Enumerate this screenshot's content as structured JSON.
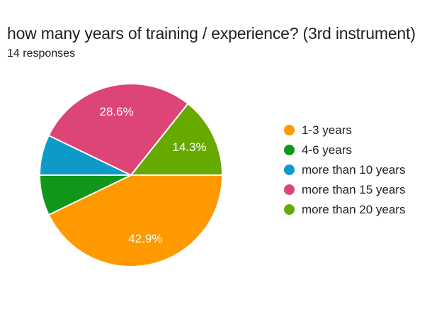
{
  "theme": {
    "background": "#ffffff",
    "text_color": "#212121",
    "slice_label_color": "#ffffff",
    "slice_border_color": "#ffffff"
  },
  "chart_data": {
    "type": "pie",
    "title": "how many years of training / experience? (3rd instrument)",
    "subtitle": "14 responses",
    "total_responses": 14,
    "start_angle_deg": 0,
    "direction": "clockwise",
    "legend_position": "right",
    "slices": [
      {
        "label": "1-3 years",
        "count": 6,
        "percent": 42.9,
        "display_percent": "42.9%",
        "color": "#ff9900"
      },
      {
        "label": "4-6 years",
        "count": 1,
        "percent": 7.1,
        "display_percent": "",
        "color": "#109618"
      },
      {
        "label": "more than 10 years",
        "count": 1,
        "percent": 7.1,
        "display_percent": "",
        "color": "#0e9ac9"
      },
      {
        "label": "more than 15 years",
        "count": 4,
        "percent": 28.6,
        "display_percent": "28.6%",
        "color": "#dd4477"
      },
      {
        "label": "more than 20 years",
        "count": 2,
        "percent": 14.3,
        "display_percent": "14.3%",
        "color": "#66aa00"
      }
    ]
  }
}
